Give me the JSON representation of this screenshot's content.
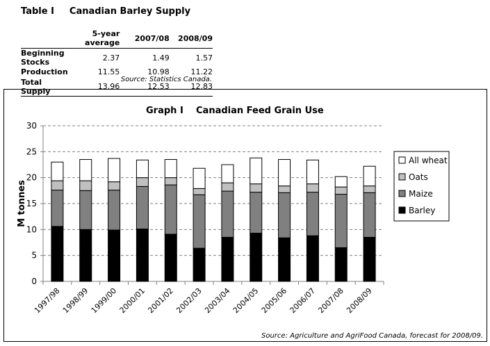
{
  "table": {
    "label": "Table I",
    "title": "Canadian Barley Supply",
    "columns": [
      "",
      "5-year average",
      "2007/08",
      "2008/09"
    ],
    "rows": [
      {
        "label": "Beginning Stocks",
        "values": [
          "2.37",
          "1.49",
          "1.57"
        ]
      },
      {
        "label": "Production",
        "values": [
          "11.55",
          "10.98",
          "11.22"
        ]
      },
      {
        "label": "Total Supply",
        "values": [
          "13.96",
          "12.53",
          "12.83"
        ]
      }
    ],
    "source": "Source: Statistics Canada."
  },
  "chart_data": {
    "type": "bar",
    "stacked": true,
    "label": "Graph I",
    "title": "Canadian Feed Grain Use",
    "xlabel": "",
    "ylabel": "M tonnes",
    "ylim": [
      0,
      30
    ],
    "yticks": [
      0,
      5,
      10,
      15,
      20,
      25,
      30
    ],
    "grid": true,
    "legend_position": "right",
    "categories": [
      "1997/98",
      "1998/99",
      "1999/00",
      "2000/01",
      "2001/02",
      "2002/03",
      "2003/04",
      "2004/05",
      "2005/06",
      "2006/07",
      "2007/08",
      "2008/09"
    ],
    "series": [
      {
        "name": "Barley",
        "color": "#000000",
        "values": [
          10.6,
          10.0,
          9.9,
          10.1,
          9.1,
          6.4,
          8.5,
          9.3,
          8.4,
          8.8,
          6.5,
          8.5
        ]
      },
      {
        "name": "Maize",
        "color": "#808080",
        "values": [
          7.0,
          7.5,
          7.7,
          8.2,
          9.5,
          10.3,
          8.9,
          7.9,
          8.7,
          8.4,
          10.3,
          8.6
        ]
      },
      {
        "name": "Oats",
        "color": "#c0c0c0",
        "values": [
          1.8,
          1.9,
          1.6,
          1.7,
          1.4,
          1.2,
          1.6,
          1.6,
          1.3,
          1.6,
          1.4,
          1.3
        ]
      },
      {
        "name": "All wheat",
        "color": "#ffffff",
        "values": [
          3.6,
          4.1,
          4.5,
          3.4,
          3.5,
          3.9,
          3.5,
          5.0,
          5.1,
          4.6,
          2.0,
          3.8
        ]
      }
    ],
    "source": "Source: Agriculture and AgriFood Canada, forecast for 2008/09."
  }
}
